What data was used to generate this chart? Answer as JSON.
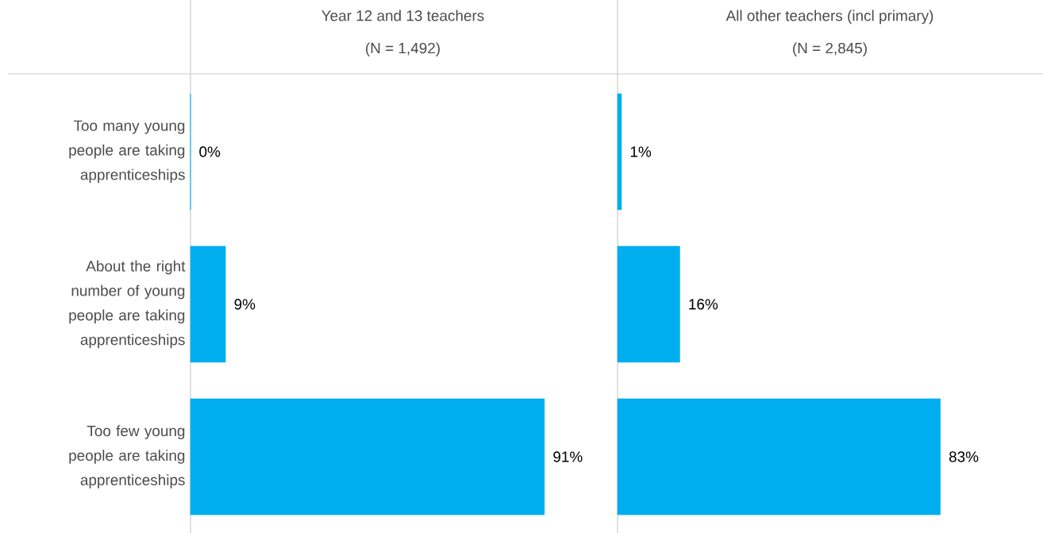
{
  "chart_data": [
    {
      "type": "bar",
      "orientation": "horizontal",
      "title": "Year 12 and 13 teachers",
      "subtitle": "(N = 1,492)",
      "categories": [
        "Too many young people are taking apprenticeships",
        "About the right number of young people are taking apprenticeships",
        "Too few young people are taking apprenticeships"
      ],
      "values": [
        0,
        9,
        91
      ],
      "value_labels": [
        "0%",
        "9%",
        "91%"
      ],
      "color": "#00aeef",
      "tick_labels": "y"
    },
    {
      "type": "bar",
      "orientation": "horizontal",
      "title": "All other teachers (incl primary)",
      "subtitle": "(N = 2,845)",
      "categories": [
        null,
        null,
        null
      ],
      "values": [
        1,
        16,
        83
      ],
      "value_labels": [
        "1%",
        "16%",
        "83%"
      ],
      "color": "#00aeef",
      "tick_labels": false
    }
  ]
}
